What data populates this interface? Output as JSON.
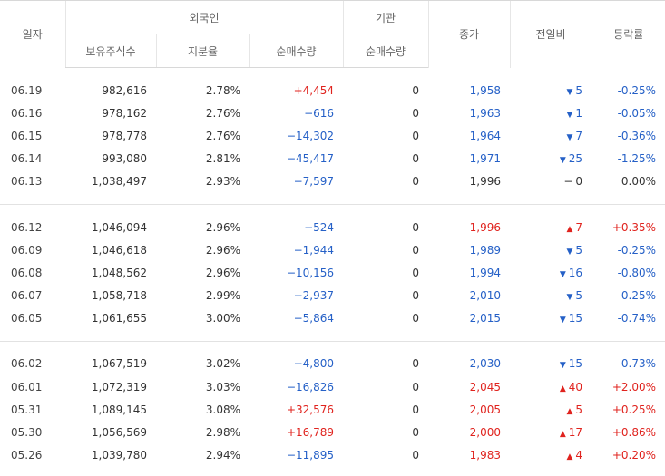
{
  "headers": {
    "date": "일자",
    "foreign": "외국인",
    "holdings": "보유주식수",
    "share_ratio": "지분율",
    "foreign_net": "순매수량",
    "institution": "기관",
    "inst_net": "순매수량",
    "close": "종가",
    "change": "전일비",
    "rate": "등락률"
  },
  "groups": [
    [
      {
        "date": "06.19",
        "holdings": "982,616",
        "ratio": "2.78%",
        "fnet": "+4,454",
        "fnet_dir": "pos",
        "inet": "0",
        "close": "1,958",
        "close_dir": "neg",
        "chg_dir": "down",
        "chg": "5",
        "rate": "-0.25%",
        "rate_dir": "neg"
      },
      {
        "date": "06.16",
        "holdings": "978,162",
        "ratio": "2.76%",
        "fnet": "−616",
        "fnet_dir": "neg",
        "inet": "0",
        "close": "1,963",
        "close_dir": "neg",
        "chg_dir": "down",
        "chg": "1",
        "rate": "-0.05%",
        "rate_dir": "neg"
      },
      {
        "date": "06.15",
        "holdings": "978,778",
        "ratio": "2.76%",
        "fnet": "−14,302",
        "fnet_dir": "neg",
        "inet": "0",
        "close": "1,964",
        "close_dir": "neg",
        "chg_dir": "down",
        "chg": "7",
        "rate": "-0.36%",
        "rate_dir": "neg"
      },
      {
        "date": "06.14",
        "holdings": "993,080",
        "ratio": "2.81%",
        "fnet": "−45,417",
        "fnet_dir": "neg",
        "inet": "0",
        "close": "1,971",
        "close_dir": "neg",
        "chg_dir": "down",
        "chg": "25",
        "rate": "-1.25%",
        "rate_dir": "neg"
      },
      {
        "date": "06.13",
        "holdings": "1,038,497",
        "ratio": "2.93%",
        "fnet": "−7,597",
        "fnet_dir": "neg",
        "inet": "0",
        "close": "1,996",
        "close_dir": "zero",
        "chg_dir": "flat",
        "chg": "0",
        "rate": "0.00%",
        "rate_dir": "zero"
      }
    ],
    [
      {
        "date": "06.12",
        "holdings": "1,046,094",
        "ratio": "2.96%",
        "fnet": "−524",
        "fnet_dir": "neg",
        "inet": "0",
        "close": "1,996",
        "close_dir": "pos",
        "chg_dir": "up",
        "chg": "7",
        "rate": "+0.35%",
        "rate_dir": "pos"
      },
      {
        "date": "06.09",
        "holdings": "1,046,618",
        "ratio": "2.96%",
        "fnet": "−1,944",
        "fnet_dir": "neg",
        "inet": "0",
        "close": "1,989",
        "close_dir": "neg",
        "chg_dir": "down",
        "chg": "5",
        "rate": "-0.25%",
        "rate_dir": "neg"
      },
      {
        "date": "06.08",
        "holdings": "1,048,562",
        "ratio": "2.96%",
        "fnet": "−10,156",
        "fnet_dir": "neg",
        "inet": "0",
        "close": "1,994",
        "close_dir": "neg",
        "chg_dir": "down",
        "chg": "16",
        "rate": "-0.80%",
        "rate_dir": "neg"
      },
      {
        "date": "06.07",
        "holdings": "1,058,718",
        "ratio": "2.99%",
        "fnet": "−2,937",
        "fnet_dir": "neg",
        "inet": "0",
        "close": "2,010",
        "close_dir": "neg",
        "chg_dir": "down",
        "chg": "5",
        "rate": "-0.25%",
        "rate_dir": "neg"
      },
      {
        "date": "06.05",
        "holdings": "1,061,655",
        "ratio": "3.00%",
        "fnet": "−5,864",
        "fnet_dir": "neg",
        "inet": "0",
        "close": "2,015",
        "close_dir": "neg",
        "chg_dir": "down",
        "chg": "15",
        "rate": "-0.74%",
        "rate_dir": "neg"
      }
    ],
    [
      {
        "date": "06.02",
        "holdings": "1,067,519",
        "ratio": "3.02%",
        "fnet": "−4,800",
        "fnet_dir": "neg",
        "inet": "0",
        "close": "2,030",
        "close_dir": "neg",
        "chg_dir": "down",
        "chg": "15",
        "rate": "-0.73%",
        "rate_dir": "neg"
      },
      {
        "date": "06.01",
        "holdings": "1,072,319",
        "ratio": "3.03%",
        "fnet": "−16,826",
        "fnet_dir": "neg",
        "inet": "0",
        "close": "2,045",
        "close_dir": "pos",
        "chg_dir": "up",
        "chg": "40",
        "rate": "+2.00%",
        "rate_dir": "pos"
      },
      {
        "date": "05.31",
        "holdings": "1,089,145",
        "ratio": "3.08%",
        "fnet": "+32,576",
        "fnet_dir": "pos",
        "inet": "0",
        "close": "2,005",
        "close_dir": "pos",
        "chg_dir": "up",
        "chg": "5",
        "rate": "+0.25%",
        "rate_dir": "pos"
      },
      {
        "date": "05.30",
        "holdings": "1,056,569",
        "ratio": "2.98%",
        "fnet": "+16,789",
        "fnet_dir": "pos",
        "inet": "0",
        "close": "2,000",
        "close_dir": "pos",
        "chg_dir": "up",
        "chg": "17",
        "rate": "+0.86%",
        "rate_dir": "pos"
      },
      {
        "date": "05.26",
        "holdings": "1,039,780",
        "ratio": "2.94%",
        "fnet": "−11,895",
        "fnet_dir": "neg",
        "inet": "0",
        "close": "1,983",
        "close_dir": "pos",
        "chg_dir": "up",
        "chg": "4",
        "rate": "+0.20%",
        "rate_dir": "pos"
      }
    ]
  ],
  "colors": {
    "up": "#e0231e",
    "down": "#2560c7",
    "border": "#d8d8d8"
  },
  "icons": {
    "up": "triangle-up-icon",
    "down": "triangle-down-icon",
    "flat": "dash-icon"
  }
}
